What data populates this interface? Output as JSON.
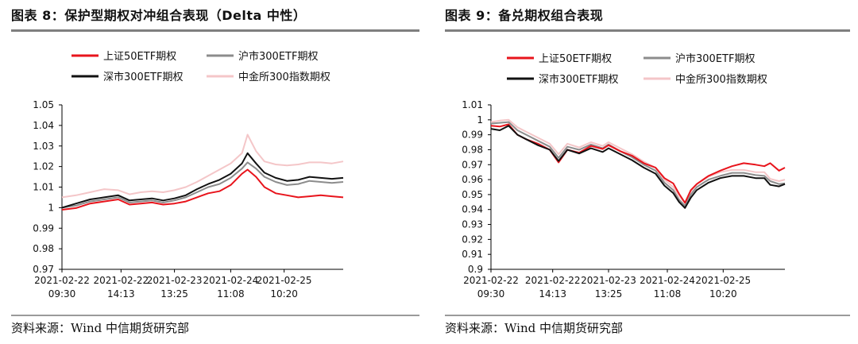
{
  "figures": [
    {
      "title": "图表 8：保护型期权对冲组合表现（Delta 中性）",
      "source": "资料来源：Wind  中信期货研究部"
    },
    {
      "title": "图表 9：备兑期权组合表现",
      "source": "资料来源：Wind  中信期货研究部"
    }
  ],
  "chart_data": [
    {
      "type": "line",
      "title": "保护型期权对冲组合表现（Delta 中性）",
      "ylim": [
        0.97,
        1.05
      ],
      "yticks": [
        "0.97",
        "0.98",
        "0.99",
        "1",
        "1.01",
        "1.02",
        "1.03",
        "1.04",
        "1.05"
      ],
      "xlim": [
        0,
        100
      ],
      "xticks": [
        {
          "x": 0,
          "date": "2021-02-22",
          "time": "09:30"
        },
        {
          "x": 21,
          "date": "2021-02-22",
          "time": "14:13"
        },
        {
          "x": 40,
          "date": "2021-02-23",
          "time": "13:25"
        },
        {
          "x": 60,
          "date": "2021-02-24",
          "time": "11:08"
        },
        {
          "x": 79,
          "date": "2021-02-25",
          "time": "10:20"
        }
      ],
      "xlabel": "",
      "ylabel": "",
      "legend": "top",
      "series": [
        {
          "name": "上证50ETF期权",
          "color": "#e8141c",
          "points": [
            [
              0,
              0.999
            ],
            [
              5,
              0.9998
            ],
            [
              10,
              1.002
            ],
            [
              15,
              1.003
            ],
            [
              20,
              1.004
            ],
            [
              24,
              1.0015
            ],
            [
              28,
              1.002
            ],
            [
              32,
              1.0025
            ],
            [
              36,
              1.0015
            ],
            [
              40,
              1.002
            ],
            [
              44,
              1.003
            ],
            [
              48,
              1.005
            ],
            [
              52,
              1.007
            ],
            [
              56,
              1.008
            ],
            [
              60,
              1.011
            ],
            [
              64,
              1.0165
            ],
            [
              66,
              1.0185
            ],
            [
              69,
              1.015
            ],
            [
              72,
              1.01
            ],
            [
              76,
              1.007
            ],
            [
              80,
              1.006
            ],
            [
              84,
              1.005
            ],
            [
              88,
              1.0055
            ],
            [
              92,
              1.006
            ],
            [
              96,
              1.0055
            ],
            [
              100,
              1.005
            ]
          ]
        },
        {
          "name": "沪市300ETF期权",
          "color": "#8c8c8c",
          "points": [
            [
              0,
              1.0
            ],
            [
              5,
              1.001
            ],
            [
              10,
              1.003
            ],
            [
              15,
              1.004
            ],
            [
              20,
              1.005
            ],
            [
              24,
              1.0025
            ],
            [
              28,
              1.003
            ],
            [
              32,
              1.0035
            ],
            [
              36,
              1.0025
            ],
            [
              40,
              1.0035
            ],
            [
              44,
              1.005
            ],
            [
              48,
              1.0075
            ],
            [
              52,
              1.01
            ],
            [
              56,
              1.0115
            ],
            [
              60,
              1.0145
            ],
            [
              64,
              1.019
            ],
            [
              66,
              1.022
            ],
            [
              69,
              1.019
            ],
            [
              72,
              1.015
            ],
            [
              76,
              1.0125
            ],
            [
              80,
              1.011
            ],
            [
              84,
              1.0115
            ],
            [
              88,
              1.013
            ],
            [
              92,
              1.0125
            ],
            [
              96,
              1.012
            ],
            [
              100,
              1.0125
            ]
          ]
        },
        {
          "name": "深市300ETF期权",
          "color": "#111111",
          "points": [
            [
              0,
              1.0
            ],
            [
              5,
              1.002
            ],
            [
              10,
              1.004
            ],
            [
              15,
              1.005
            ],
            [
              20,
              1.006
            ],
            [
              24,
              1.0035
            ],
            [
              28,
              1.004
            ],
            [
              32,
              1.0045
            ],
            [
              36,
              1.0035
            ],
            [
              40,
              1.0045
            ],
            [
              44,
              1.006
            ],
            [
              48,
              1.009
            ],
            [
              52,
              1.0115
            ],
            [
              56,
              1.0135
            ],
            [
              60,
              1.0165
            ],
            [
              64,
              1.0215
            ],
            [
              66,
              1.0265
            ],
            [
              69,
              1.0215
            ],
            [
              72,
              1.017
            ],
            [
              76,
              1.0145
            ],
            [
              80,
              1.013
            ],
            [
              84,
              1.0135
            ],
            [
              88,
              1.015
            ],
            [
              92,
              1.0145
            ],
            [
              96,
              1.014
            ],
            [
              100,
              1.0145
            ]
          ]
        },
        {
          "name": "中金所300指数期权",
          "color": "#f4c6c8",
          "points": [
            [
              0,
              1.005
            ],
            [
              5,
              1.006
            ],
            [
              10,
              1.0075
            ],
            [
              15,
              1.009
            ],
            [
              20,
              1.0085
            ],
            [
              24,
              1.0065
            ],
            [
              28,
              1.0075
            ],
            [
              32,
              1.008
            ],
            [
              36,
              1.0075
            ],
            [
              40,
              1.0085
            ],
            [
              44,
              1.01
            ],
            [
              48,
              1.0125
            ],
            [
              52,
              1.0155
            ],
            [
              56,
              1.0185
            ],
            [
              60,
              1.0215
            ],
            [
              64,
              1.0265
            ],
            [
              66,
              1.0355
            ],
            [
              69,
              1.0275
            ],
            [
              72,
              1.0225
            ],
            [
              76,
              1.021
            ],
            [
              80,
              1.0205
            ],
            [
              84,
              1.021
            ],
            [
              88,
              1.022
            ],
            [
              92,
              1.022
            ],
            [
              96,
              1.0215
            ],
            [
              100,
              1.0225
            ]
          ]
        }
      ]
    },
    {
      "type": "line",
      "title": "备兑期权组合表现",
      "ylim": [
        0.9,
        1.01
      ],
      "yticks": [
        "0.9",
        "0.91",
        "0.92",
        "0.93",
        "0.94",
        "0.95",
        "0.96",
        "0.97",
        "0.98",
        "0.99",
        "1",
        "1.01"
      ],
      "xlim": [
        0,
        100
      ],
      "xticks": [
        {
          "x": 0,
          "date": "2021-02-22",
          "time": "09:30"
        },
        {
          "x": 21,
          "date": "2021-02-22",
          "time": "14:13"
        },
        {
          "x": 40,
          "date": "2021-02-23",
          "time": "13:25"
        },
        {
          "x": 60,
          "date": "2021-02-24",
          "time": "11:08"
        },
        {
          "x": 79,
          "date": "2021-02-25",
          "time": "10:20"
        }
      ],
      "xlabel": "",
      "ylabel": "",
      "legend": "top",
      "series": [
        {
          "name": "上证50ETF期权",
          "color": "#e8141c",
          "points": [
            [
              0,
              0.996
            ],
            [
              3,
              0.9955
            ],
            [
              6,
              0.997
            ],
            [
              9,
              0.99
            ],
            [
              12,
              0.987
            ],
            [
              16,
              0.984
            ],
            [
              20,
              0.98
            ],
            [
              23,
              0.9715
            ],
            [
              26,
              0.98
            ],
            [
              30,
              0.978
            ],
            [
              34,
              0.9825
            ],
            [
              38,
              0.9805
            ],
            [
              40,
              0.983
            ],
            [
              44,
              0.979
            ],
            [
              48,
              0.976
            ],
            [
              52,
              0.971
            ],
            [
              56,
              0.968
            ],
            [
              59,
              0.961
            ],
            [
              62,
              0.9575
            ],
            [
              64,
              0.9505
            ],
            [
              66,
              0.9445
            ],
            [
              68,
              0.953
            ],
            [
              70,
              0.957
            ],
            [
              74,
              0.9625
            ],
            [
              78,
              0.966
            ],
            [
              82,
              0.969
            ],
            [
              86,
              0.971
            ],
            [
              90,
              0.97
            ],
            [
              93,
              0.969
            ],
            [
              95,
              0.971
            ],
            [
              98,
              0.966
            ],
            [
              100,
              0.968
            ]
          ]
        },
        {
          "name": "沪市300ETF期权",
          "color": "#8c8c8c",
          "points": [
            [
              0,
              0.9975
            ],
            [
              3,
              0.998
            ],
            [
              6,
              0.9985
            ],
            [
              9,
              0.993
            ],
            [
              12,
              0.99
            ],
            [
              16,
              0.986
            ],
            [
              20,
              0.982
            ],
            [
              23,
              0.9745
            ],
            [
              26,
              0.982
            ],
            [
              30,
              0.98
            ],
            [
              34,
              0.9835
            ],
            [
              38,
              0.981
            ],
            [
              40,
              0.9835
            ],
            [
              44,
              0.979
            ],
            [
              48,
              0.975
            ],
            [
              52,
              0.97
            ],
            [
              56,
              0.966
            ],
            [
              59,
              0.958
            ],
            [
              62,
              0.953
            ],
            [
              64,
              0.9465
            ],
            [
              66,
              0.9425
            ],
            [
              68,
              0.95
            ],
            [
              70,
              0.955
            ],
            [
              74,
              0.96
            ],
            [
              78,
              0.9625
            ],
            [
              82,
              0.9645
            ],
            [
              86,
              0.9645
            ],
            [
              90,
              0.963
            ],
            [
              93,
              0.9625
            ],
            [
              95,
              0.959
            ],
            [
              98,
              0.957
            ],
            [
              100,
              0.9575
            ]
          ]
        },
        {
          "name": "深市300ETF期权",
          "color": "#111111",
          "points": [
            [
              0,
              0.994
            ],
            [
              3,
              0.993
            ],
            [
              6,
              0.996
            ],
            [
              9,
              0.99
            ],
            [
              12,
              0.987
            ],
            [
              16,
              0.983
            ],
            [
              20,
              0.98
            ],
            [
              23,
              0.9725
            ],
            [
              26,
              0.98
            ],
            [
              30,
              0.9775
            ],
            [
              34,
              0.981
            ],
            [
              38,
              0.9785
            ],
            [
              40,
              0.981
            ],
            [
              44,
              0.977
            ],
            [
              48,
              0.973
            ],
            [
              52,
              0.968
            ],
            [
              56,
              0.964
            ],
            [
              59,
              0.956
            ],
            [
              62,
              0.951
            ],
            [
              64,
              0.945
            ],
            [
              66,
              0.941
            ],
            [
              68,
              0.948
            ],
            [
              70,
              0.953
            ],
            [
              74,
              0.958
            ],
            [
              78,
              0.961
            ],
            [
              82,
              0.9625
            ],
            [
              86,
              0.9625
            ],
            [
              90,
              0.961
            ],
            [
              93,
              0.961
            ],
            [
              95,
              0.9565
            ],
            [
              98,
              0.9555
            ],
            [
              100,
              0.957
            ]
          ]
        },
        {
          "name": "中金所300指数期权",
          "color": "#f4c6c8",
          "points": [
            [
              0,
              0.9985
            ],
            [
              3,
              0.9995
            ],
            [
              6,
              1.0
            ],
            [
              9,
              0.995
            ],
            [
              12,
              0.992
            ],
            [
              16,
              0.988
            ],
            [
              20,
              0.984
            ],
            [
              23,
              0.977
            ],
            [
              26,
              0.984
            ],
            [
              30,
              0.9815
            ],
            [
              34,
              0.985
            ],
            [
              38,
              0.9825
            ],
            [
              40,
              0.985
            ],
            [
              44,
              0.981
            ],
            [
              48,
              0.977
            ],
            [
              52,
              0.972
            ],
            [
              56,
              0.968
            ],
            [
              59,
              0.96
            ],
            [
              62,
              0.955
            ],
            [
              64,
              0.949
            ],
            [
              66,
              0.9445
            ],
            [
              68,
              0.952
            ],
            [
              70,
              0.957
            ],
            [
              74,
              0.962
            ],
            [
              78,
              0.965
            ],
            [
              82,
              0.9665
            ],
            [
              86,
              0.9665
            ],
            [
              90,
              0.965
            ],
            [
              93,
              0.965
            ],
            [
              95,
              0.9605
            ],
            [
              98,
              0.959
            ],
            [
              100,
              0.96
            ]
          ]
        }
      ]
    }
  ]
}
